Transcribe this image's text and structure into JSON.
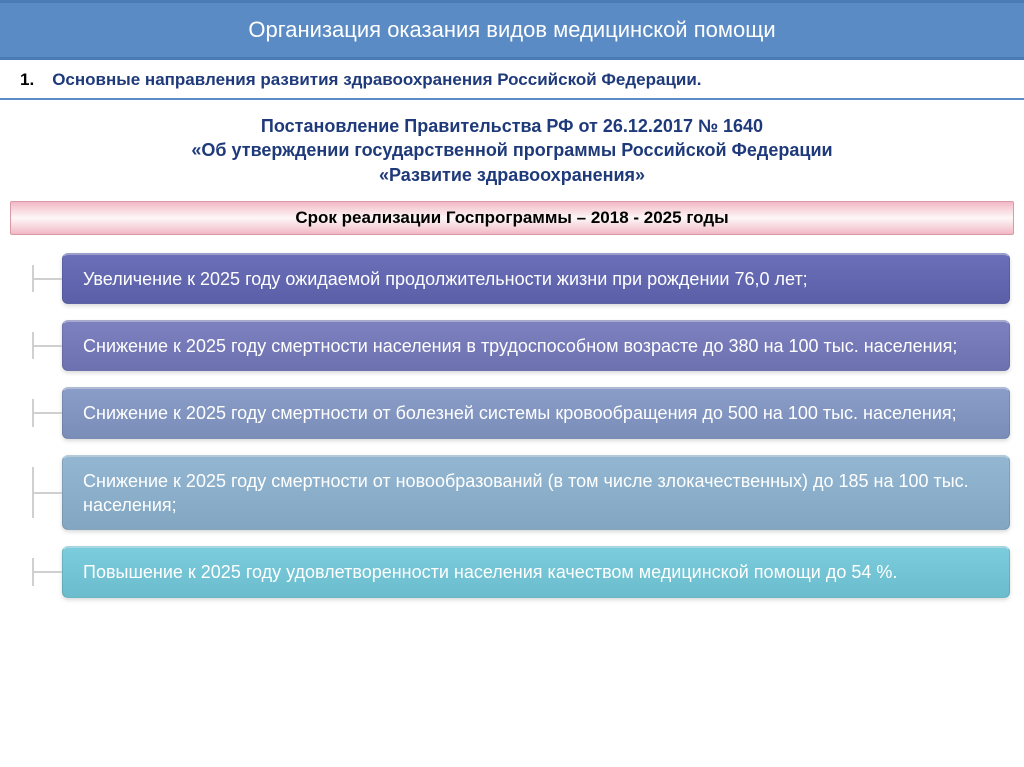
{
  "header": {
    "title": "Организация оказания видов медицинской помощи"
  },
  "section": {
    "number": "1.",
    "text": "Основные направления развития здравоохранения Российской Федерации."
  },
  "decree": {
    "line1": "Постановление Правительства РФ от 26.12.2017 № 1640",
    "line2": "«Об утверждении государственной программы Российской Федерации",
    "line3": "«Развитие здравоохранения»"
  },
  "period": {
    "text": "Срок реализации Госпрограммы – 2018 - 2025 годы"
  },
  "goals": [
    {
      "text": "Увеличение к 2025 году ожидаемой продолжительности жизни при рождении 76,0 лет;",
      "bg_color": "#5a5fa8",
      "gradient_top": "#6a6fb8"
    },
    {
      "text": "Снижение к 2025 году смертности населения в трудоспособном возрасте до 380 на 100 тыс. населения;",
      "bg_color": "#6d71af",
      "gradient_top": "#7d81bf"
    },
    {
      "text": "Снижение к 2025 году смертности от болезней системы кровообращения  до 500 на 100 тыс. населения;",
      "bg_color": "#7a8db8",
      "gradient_top": "#8a9dc8"
    },
    {
      "text": "Снижение к 2025 году смертности от новообразований (в том числе злокачественных) до 185 на 100 тыс. населения;",
      "bg_color": "#83a7c2",
      "gradient_top": "#93b7d2"
    },
    {
      "text": "Повышение  к 2025 году удовлетворенности населения качеством медицинской помощи до 54 %.",
      "bg_color": "#6bbccc",
      "gradient_top": "#7bccdc"
    }
  ]
}
